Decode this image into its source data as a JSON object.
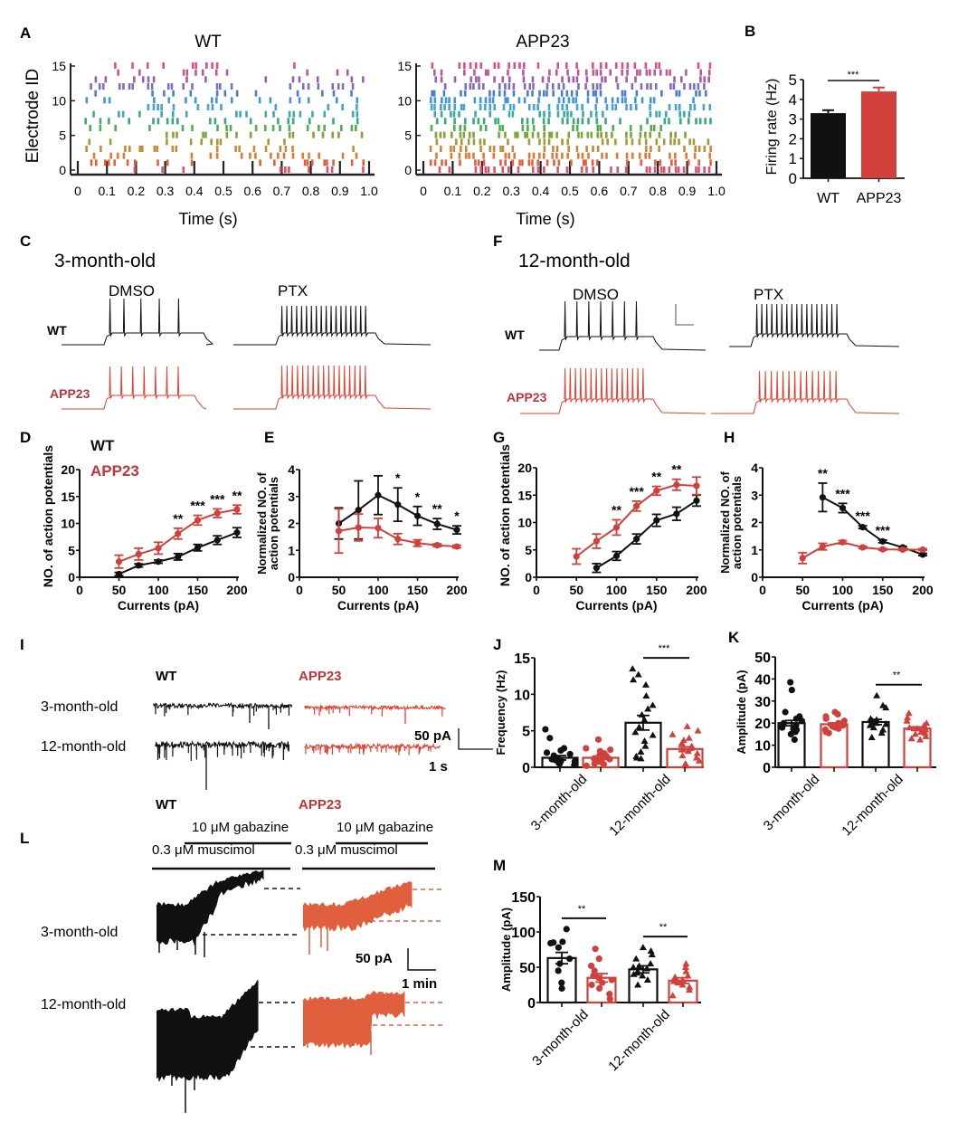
{
  "colors": {
    "wt": "#111111",
    "app": "#d1403b",
    "app_trace": "#e0412f",
    "app_L": "#e0603e",
    "app_label": "#c0343b"
  },
  "panel_labels": [
    "A",
    "B",
    "C",
    "D",
    "E",
    "F",
    "G",
    "H",
    "I",
    "J",
    "K",
    "L",
    "M"
  ],
  "panelA": {
    "wt_title": "WT",
    "app_title": "APP23",
    "ylabel": "Electrode ID",
    "xlabel": "Time (s)",
    "yticks": [
      "0",
      "5",
      "10",
      "15"
    ],
    "xticks": [
      "0",
      "0.1",
      "0.2",
      "0.3",
      "0.4",
      "0.5",
      "0.6",
      "0.7",
      "0.8",
      "0.9",
      "1.0"
    ],
    "electrode_colors": [
      "#e0506e",
      "#e2603c",
      "#e07836",
      "#c98a38",
      "#a39a35",
      "#7ea538",
      "#4fae50",
      "#37aa7c",
      "#3aaaa8",
      "#43a4cf",
      "#4494d8",
      "#4a7fd0",
      "#7c6cc2",
      "#a05ab0",
      "#c25598",
      "#d9508a"
    ],
    "wt_density": 0.28,
    "app_density": 0.55
  },
  "chart_data": [
    {
      "id": "B",
      "type": "bar",
      "categories": [
        "WT",
        "APP23"
      ],
      "values": [
        3.3,
        4.4
      ],
      "errors": [
        0.15,
        0.2
      ],
      "ylabel": "Firing rate (Hz)",
      "ylim": [
        0,
        5
      ],
      "yticks": [
        "0",
        "1",
        "2",
        "3",
        "4",
        "5"
      ],
      "significance": [
        {
          "between": [
            0,
            1
          ],
          "label": "***"
        }
      ]
    },
    {
      "id": "D",
      "type": "line",
      "xlabel": "Currents (pA)",
      "ylabel": "NO. of action potentials",
      "xlim": [
        0,
        200
      ],
      "ylim": [
        0,
        20
      ],
      "xticks": [
        "0",
        "50",
        "100",
        "150",
        "200"
      ],
      "yticks": [
        "0",
        "5",
        "10",
        "15",
        "20"
      ],
      "legend": [
        "WT",
        "APP23"
      ],
      "legend_position": "top-left",
      "series": [
        {
          "name": "WT",
          "x": [
            50,
            75,
            100,
            125,
            150,
            175,
            200
          ],
          "y": [
            0.6,
            2.2,
            2.9,
            3.8,
            5.5,
            6.9,
            8.3
          ],
          "err": [
            0.3,
            0.3,
            0.3,
            0.6,
            0.6,
            0.8,
            0.9
          ]
        },
        {
          "name": "APP23",
          "x": [
            50,
            75,
            100,
            125,
            150,
            175,
            200
          ],
          "y": [
            2.9,
            4.3,
            5.4,
            8.1,
            10.6,
            11.9,
            12.6
          ],
          "err": [
            1.2,
            1.1,
            1.1,
            1.0,
            0.9,
            0.8,
            0.8
          ]
        }
      ],
      "annotations": [
        {
          "x": 125,
          "label": "**"
        },
        {
          "x": 150,
          "label": "***"
        },
        {
          "x": 175,
          "label": "***"
        },
        {
          "x": 200,
          "label": "**"
        }
      ]
    },
    {
      "id": "E",
      "type": "line",
      "xlabel": "Currents (pA)",
      "ylabel": "Normalized NO. of action potentials",
      "ylabel_lines": [
        "Normalized NO. of",
        "action potentials"
      ],
      "xlim": [
        0,
        200
      ],
      "ylim": [
        0,
        4
      ],
      "xticks": [
        "0",
        "50",
        "100",
        "150",
        "200"
      ],
      "yticks": [
        "0",
        "1",
        "2",
        "3",
        "4"
      ],
      "series": [
        {
          "name": "WT",
          "x": [
            50,
            75,
            100,
            125,
            150,
            175,
            200
          ],
          "y": [
            2.0,
            2.5,
            3.05,
            2.7,
            2.28,
            1.98,
            1.76
          ],
          "err": [
            0.58,
            1.08,
            0.72,
            0.62,
            0.35,
            0.2,
            0.15
          ]
        },
        {
          "name": "APP23",
          "x": [
            50,
            75,
            100,
            125,
            150,
            175,
            200
          ],
          "y": [
            1.72,
            1.85,
            1.83,
            1.42,
            1.27,
            1.19,
            1.14
          ],
          "err": [
            0.82,
            0.5,
            0.36,
            0.2,
            0.12,
            0.05,
            0.05
          ]
        }
      ],
      "annotations": [
        {
          "x": 125,
          "label": "*"
        },
        {
          "x": 150,
          "label": "*"
        },
        {
          "x": 175,
          "label": "**"
        },
        {
          "x": 200,
          "label": "*"
        }
      ]
    },
    {
      "id": "G",
      "type": "line",
      "xlabel": "Currents (pA)",
      "ylabel": "NO. of action potentials",
      "xlim": [
        0,
        200
      ],
      "ylim": [
        0,
        20
      ],
      "xticks": [
        "0",
        "50",
        "100",
        "150",
        "200"
      ],
      "yticks": [
        "0",
        "5",
        "10",
        "15",
        "20"
      ],
      "series": [
        {
          "name": "WT",
          "x": [
            75,
            100,
            125,
            150,
            175,
            200
          ],
          "y": [
            1.7,
            3.9,
            7.0,
            10.4,
            11.6,
            14.0
          ],
          "err": [
            0.8,
            0.8,
            0.9,
            1.1,
            1.2,
            1.0
          ]
        },
        {
          "name": "APP23",
          "x": [
            50,
            75,
            100,
            125,
            150,
            175,
            200
          ],
          "y": [
            3.8,
            6.6,
            9.1,
            13.0,
            15.8,
            16.9,
            16.7
          ],
          "err": [
            1.4,
            1.3,
            1.4,
            0.9,
            0.8,
            1.0,
            1.6
          ]
        }
      ],
      "annotations": [
        {
          "x": 100,
          "label": "**"
        },
        {
          "x": 125,
          "label": "***"
        },
        {
          "x": 150,
          "label": "**"
        },
        {
          "x": 175,
          "label": "**"
        }
      ]
    },
    {
      "id": "H",
      "type": "line",
      "xlabel": "Currents (pA)",
      "ylabel": "Normalized NO. of action potentials",
      "ylabel_lines": [
        "Normalized NO. of",
        "action potentials"
      ],
      "xlim": [
        0,
        200
      ],
      "ylim": [
        0,
        4
      ],
      "xticks": [
        "0",
        "50",
        "100",
        "150",
        "200"
      ],
      "yticks": [
        "0",
        "1",
        "2",
        "3",
        "4"
      ],
      "series": [
        {
          "name": "WT",
          "x": [
            75,
            100,
            125,
            150,
            175,
            200
          ],
          "y": [
            2.92,
            2.53,
            1.83,
            1.31,
            1.09,
            0.83
          ],
          "err": [
            0.52,
            0.17,
            0.05,
            0.05,
            0.04,
            0.04
          ]
        },
        {
          "name": "APP23",
          "x": [
            50,
            75,
            100,
            125,
            150,
            175,
            200
          ],
          "y": [
            0.7,
            1.12,
            1.28,
            1.09,
            1.02,
            1.01,
            1.01
          ],
          "err": [
            0.2,
            0.12,
            0.06,
            0.04,
            0.03,
            0.03,
            0.03
          ]
        }
      ],
      "annotations": [
        {
          "x": 75,
          "label": "**"
        },
        {
          "x": 100,
          "label": "***"
        },
        {
          "x": 125,
          "label": "***"
        },
        {
          "x": 150,
          "label": "***"
        }
      ]
    },
    {
      "id": "J",
      "type": "bar",
      "ylabel": "Frequency (Hz)",
      "ylim": [
        0,
        15
      ],
      "yticks": [
        "0",
        "5",
        "10",
        "15"
      ],
      "xgroups": [
        "3-month-old",
        "12-month-old"
      ],
      "bars": [
        {
          "group": "3-month-old",
          "genotype": "WT",
          "mean": 1.3,
          "sem": 0.3,
          "marker": "circle",
          "points": [
            0.3,
            0.5,
            0.6,
            0.8,
            0.9,
            1.0,
            1.1,
            1.2,
            1.4,
            1.6,
            1.8,
            2.0,
            2.3,
            2.6,
            4.0,
            5.2
          ]
        },
        {
          "group": "3-month-old",
          "genotype": "APP23",
          "mean": 1.3,
          "sem": 0.25,
          "marker": "circle",
          "points": [
            0.2,
            0.4,
            0.5,
            0.7,
            0.8,
            1.0,
            1.1,
            1.2,
            1.4,
            1.5,
            1.7,
            1.9,
            2.2,
            2.4,
            2.6,
            3.8
          ]
        },
        {
          "group": "12-month-old",
          "genotype": "WT",
          "mean": 6.1,
          "sem": 1.0,
          "marker": "triangle",
          "points": [
            1.2,
            1.3,
            1.5,
            2.1,
            2.9,
            3.6,
            4.4,
            4.8,
            5.5,
            6.5,
            7.2,
            8.0,
            8.5,
            9.8,
            11.3,
            12.0,
            12.7,
            13.5
          ]
        },
        {
          "group": "12-month-old",
          "genotype": "APP23",
          "mean": 2.5,
          "sem": 0.3,
          "marker": "triangle",
          "points": [
            0.2,
            0.5,
            0.9,
            1.3,
            1.6,
            1.9,
            2.2,
            2.4,
            2.6,
            2.9,
            3.3,
            3.7,
            4.0,
            4.5,
            5.0,
            5.6
          ]
        }
      ],
      "significance": [
        {
          "between": [
            2,
            3
          ],
          "label": "***"
        }
      ]
    },
    {
      "id": "K",
      "type": "bar",
      "ylabel": "Amplitude (pA)",
      "ylim": [
        0,
        50
      ],
      "yticks": [
        "0",
        "10",
        "20",
        "30",
        "40",
        "50"
      ],
      "xgroups": [
        "3-month-old",
        "12-month-old"
      ],
      "bars": [
        {
          "group": "3-month-old",
          "genotype": "WT",
          "mean": 20,
          "sem": 1.2,
          "marker": "circle",
          "points": [
            12.5,
            15,
            16,
            17,
            17.5,
            18,
            18.5,
            19,
            20,
            21,
            22,
            23,
            25,
            35,
            38.5
          ]
        },
        {
          "group": "3-month-old",
          "genotype": "APP23",
          "mean": 19.5,
          "sem": 0.6,
          "marker": "circle",
          "points": [
            15.5,
            16,
            17,
            17.5,
            18,
            18.5,
            19,
            19.5,
            20,
            21,
            22,
            23,
            24,
            25
          ]
        },
        {
          "group": "12-month-old",
          "genotype": "WT",
          "mean": 20.5,
          "sem": 1.2,
          "marker": "triangle",
          "points": [
            13.5,
            15.5,
            17,
            18,
            19,
            19.5,
            20,
            20.5,
            21,
            21.5,
            22,
            27,
            28,
            32.5
          ]
        },
        {
          "group": "12-month-old",
          "genotype": "APP23",
          "mean": 17.5,
          "sem": 0.8,
          "marker": "triangle",
          "points": [
            12.5,
            13,
            14,
            15,
            15.5,
            16,
            17,
            17.5,
            18,
            19,
            20,
            21,
            22.5,
            24.5
          ]
        }
      ],
      "significance": [
        {
          "between": [
            2,
            3
          ],
          "label": "**"
        }
      ]
    },
    {
      "id": "M",
      "type": "bar",
      "ylabel": "Amplitude (pA)",
      "ylim": [
        0,
        150
      ],
      "yticks": [
        "0",
        "50",
        "100",
        "150"
      ],
      "xgroups": [
        "3-month-old",
        "12-month-old"
      ],
      "bars": [
        {
          "group": "3-month-old",
          "genotype": "WT",
          "mean": 63,
          "sem": 8,
          "marker": "circle",
          "points": [
            20,
            28,
            45,
            55,
            62,
            78,
            84,
            85,
            86,
            104
          ]
        },
        {
          "group": "3-month-old",
          "genotype": "APP23",
          "mean": 35,
          "sem": 6,
          "marker": "circle",
          "points": [
            5,
            12,
            20,
            25,
            28,
            32,
            35,
            38,
            40,
            45,
            52,
            62,
            76
          ]
        },
        {
          "group": "12-month-old",
          "genotype": "WT",
          "mean": 47,
          "sem": 5,
          "marker": "triangle",
          "points": [
            25,
            32,
            38,
            40,
            42,
            44,
            48,
            50,
            52,
            55,
            62,
            68,
            73,
            78
          ]
        },
        {
          "group": "12-month-old",
          "genotype": "APP23",
          "mean": 31,
          "sem": 4,
          "marker": "triangle",
          "points": [
            10,
            18,
            22,
            25,
            28,
            30,
            32,
            34,
            36,
            38,
            44,
            50,
            55
          ]
        }
      ],
      "significance": [
        {
          "between": [
            0,
            1
          ],
          "label": "**"
        },
        {
          "between": [
            2,
            3
          ],
          "label": "**"
        }
      ]
    }
  ],
  "panelC": {
    "title": "3-month-old",
    "dmso": "DMSO",
    "ptx": "PTX",
    "wt": "WT",
    "app": "APP23",
    "wt_dmso_spikes": 5,
    "wt_ptx_spikes": 18,
    "app_dmso_spikes": 7,
    "app_ptx_spikes": 17
  },
  "panelF": {
    "title": "12-month-old",
    "dmso": "DMSO",
    "ptx": "PTX",
    "wt": "WT",
    "app": "APP23",
    "wt_dmso_spikes": 7,
    "wt_ptx_spikes": 17,
    "app_dmso_spikes": 16,
    "app_ptx_spikes": 14
  },
  "panelI": {
    "wt": "WT",
    "app": "APP23",
    "row1": "3-month-old",
    "row2": "12-month-old",
    "scale_y": "50 pA",
    "scale_x": "1 s"
  },
  "panelL": {
    "wt": "WT",
    "app": "APP23",
    "gabazine": "10 μM gabazine",
    "muscimol": "0.3 μM muscimol",
    "row1": "3-month-old",
    "row2": "12-month-old",
    "scale_y": "50 pA",
    "scale_x": "1 min"
  }
}
